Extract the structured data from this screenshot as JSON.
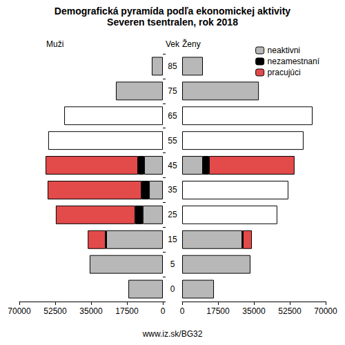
{
  "chart_data": {
    "type": "bar",
    "orientation": "horizontal",
    "stacked": true,
    "grid": false,
    "legend": "upper right",
    "title": "Demografická pyramída podľa ekonomickej aktivity",
    "subtitle": "Severen tsentralen, rok 2018",
    "axis_label": "Vek",
    "footer": "www.iz.sk/BG32",
    "categories": [
      "0",
      "5",
      "15",
      "25",
      "35",
      "45",
      "55",
      "65",
      "75",
      "85"
    ],
    "xlim": [
      0,
      70000
    ],
    "xticks": [
      0,
      17500,
      35000,
      52500,
      70000
    ],
    "panels": [
      {
        "label": "Muži",
        "series": [
          {
            "name": "neaktivni",
            "color": "#b8b8b8",
            "values": [
              16800,
              35700,
              27600,
              9800,
              6700,
              9100,
              null,
              null,
              22900,
              5400
            ]
          },
          {
            "name": "nezamestnaní",
            "color": "#000000",
            "values": [
              null,
              null,
              300,
              3700,
              3700,
              3000,
              null,
              null,
              null,
              null
            ]
          },
          {
            "name": "pracujúci",
            "color": "#e34a4a",
            "values": [
              null,
              null,
              8700,
              38700,
              45800,
              45100,
              null,
              null,
              null,
              null
            ]
          },
          {
            "color": "#ffffff",
            "values": [
              null,
              null,
              null,
              null,
              null,
              null,
              55900,
              48100,
              null,
              null
            ]
          }
        ]
      },
      {
        "label": "Ženy",
        "series": [
          {
            "name": "neaktivni",
            "color": "#b8b8b8",
            "values": [
              15500,
              33300,
              29300,
              null,
              null,
              10100,
              null,
              null,
              37400,
              10100
            ]
          },
          {
            "name": "nezamestnaní",
            "color": "#000000",
            "values": [
              null,
              null,
              300,
              null,
              null,
              3000,
              null,
              null,
              null,
              null
            ]
          },
          {
            "name": "pracujúci",
            "color": "#e34a4a",
            "values": [
              null,
              null,
              4400,
              null,
              null,
              41700,
              null,
              null,
              null,
              null
            ]
          },
          {
            "color": "#ffffff",
            "values": [
              null,
              null,
              null,
              46400,
              51800,
              null,
              59200,
              63600,
              null,
              null
            ]
          }
        ]
      }
    ]
  }
}
